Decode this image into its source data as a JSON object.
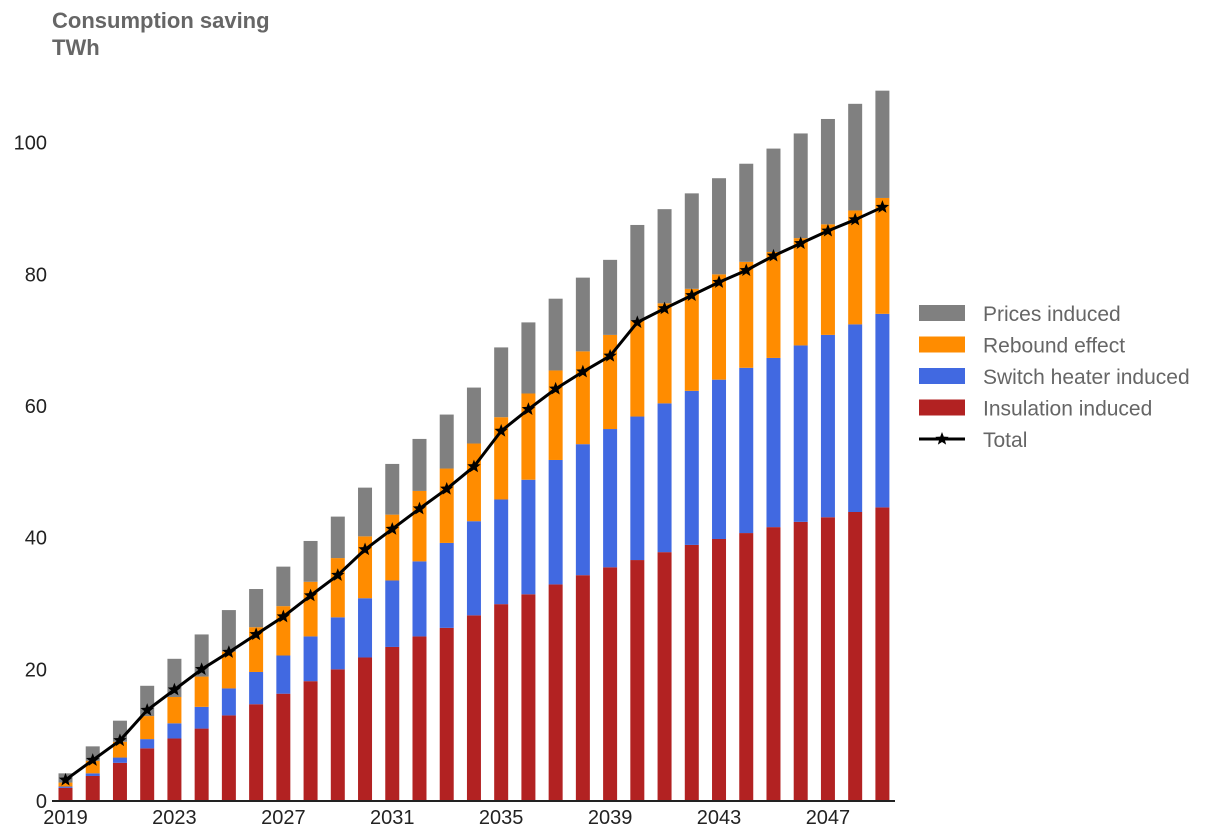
{
  "chart_data": {
    "type": "bar",
    "stacked": true,
    "title": "Consumption saving",
    "subtitle": "TWh",
    "xlabel": "",
    "ylabel": "",
    "ylim": [
      0,
      108
    ],
    "yticks": [
      0,
      20,
      40,
      60,
      80,
      100
    ],
    "xtick_labels": [
      "2019",
      "2023",
      "2027",
      "2031",
      "2035",
      "2039",
      "2043",
      "2047"
    ],
    "grid": false,
    "legend_position": "right",
    "categories": [
      2019,
      2020,
      2021,
      2022,
      2023,
      2024,
      2025,
      2026,
      2027,
      2028,
      2029,
      2030,
      2031,
      2032,
      2033,
      2034,
      2035,
      2036,
      2037,
      2038,
      2039,
      2040,
      2041,
      2042,
      2043,
      2044,
      2045,
      2046,
      2047,
      2048,
      2049
    ],
    "series": [
      {
        "name": "Insulation induced",
        "color": "#b22222",
        "values": [
          2.0,
          3.8,
          5.8,
          8.0,
          9.5,
          11.0,
          13.0,
          14.7,
          16.3,
          18.2,
          20.0,
          21.8,
          23.4,
          25.0,
          26.3,
          28.2,
          29.9,
          31.4,
          32.9,
          34.3,
          35.5,
          36.6,
          37.8,
          38.9,
          39.8,
          40.7,
          41.6,
          42.4,
          43.1,
          43.9,
          44.6
        ]
      },
      {
        "name": "Switch heater induced",
        "color": "#4169e1",
        "values": [
          0.2,
          0.4,
          0.8,
          1.4,
          2.3,
          3.3,
          4.1,
          4.9,
          5.8,
          6.8,
          7.9,
          9.0,
          10.1,
          11.4,
          12.9,
          14.3,
          15.9,
          17.4,
          18.9,
          19.9,
          21.0,
          21.8,
          22.6,
          23.4,
          24.2,
          25.1,
          25.7,
          26.8,
          27.7,
          28.5,
          29.4
        ]
      },
      {
        "name": "Rebound effect",
        "color": "#ff8c00",
        "values": [
          0.6,
          1.9,
          2.4,
          3.5,
          4.0,
          4.6,
          5.6,
          6.8,
          7.5,
          8.3,
          9.0,
          9.4,
          10.0,
          10.7,
          11.3,
          11.8,
          12.5,
          13.1,
          13.6,
          14.1,
          14.3,
          14.6,
          15.2,
          15.5,
          16.0,
          16.1,
          16.1,
          16.3,
          16.8,
          17.3,
          17.6
        ]
      },
      {
        "name": "Prices induced",
        "color": "#808080",
        "values": [
          1.4,
          2.2,
          3.2,
          4.6,
          5.8,
          6.4,
          6.3,
          5.8,
          6.0,
          6.2,
          6.3,
          7.4,
          7.7,
          7.9,
          8.2,
          8.5,
          10.6,
          10.8,
          10.9,
          11.2,
          11.4,
          14.5,
          14.3,
          14.5,
          14.6,
          14.9,
          15.7,
          15.9,
          16.0,
          16.2,
          16.3
        ]
      }
    ],
    "line": {
      "name": "Total",
      "color": "#000000",
      "marker": "star",
      "values": [
        3.2,
        6.2,
        9.2,
        13.8,
        16.9,
        20.0,
        22.6,
        25.3,
        28.0,
        31.2,
        34.3,
        38.2,
        41.3,
        44.4,
        47.4,
        50.8,
        56.2,
        59.5,
        62.6,
        65.2,
        67.6,
        72.7,
        74.8,
        76.8,
        78.8,
        80.6,
        82.8,
        84.7,
        86.6,
        88.3,
        90.2
      ]
    },
    "legend_order": [
      "Prices induced",
      "Rebound effect",
      "Switch heater induced",
      "Insulation induced",
      "Total"
    ]
  }
}
